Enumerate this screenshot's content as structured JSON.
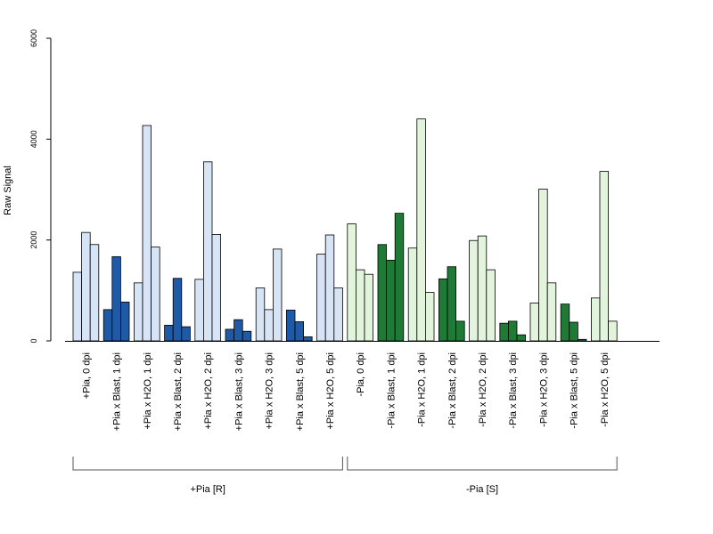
{
  "chart_data": {
    "type": "bar",
    "ylabel": "Raw Signal",
    "ylim": [
      0,
      6000
    ],
    "yticks": [
      0,
      2000,
      4000,
      6000
    ],
    "grid": false,
    "legend": "none",
    "colors": {
      "light_blue": "#d6e4f5",
      "dark_blue": "#1f5aa6",
      "light_green": "#e2f5dc",
      "dark_green": "#1f7a35",
      "stroke": "#000000"
    },
    "categories": [
      "+Pia, 0 dpi",
      "+Pia x Blast, 1 dpi",
      "+Pia x H2O, 1 dpi",
      "+Pia x Blast, 2 dpi",
      "+Pia x H2O, 2 dpi",
      "+Pia x Blast, 3 dpi",
      "+Pia x H2O, 3 dpi",
      "+Pia x Blast, 5 dpi",
      "+Pia x H2O, 5 dpi",
      "-Pia, 0 dpi",
      "-Pia x Blast, 1 dpi",
      "-Pia x H2O, 1 dpi",
      "-Pia x Blast, 2 dpi",
      "-Pia x H2O, 2 dpi",
      "-Pia x Blast, 3 dpi",
      "-Pia x H2O, 3 dpi",
      "-Pia x Blast, 5 dpi",
      "-Pia x H2O, 5 dpi"
    ],
    "bar_colors": [
      "light_blue",
      "dark_blue",
      "light_blue",
      "dark_blue",
      "light_blue",
      "dark_blue",
      "light_blue",
      "dark_blue",
      "light_blue",
      "light_green",
      "dark_green",
      "light_green",
      "dark_green",
      "light_green",
      "dark_green",
      "light_green",
      "dark_green",
      "light_green"
    ],
    "values": [
      [
        1360,
        2150,
        1910
      ],
      [
        620,
        1670,
        770
      ],
      [
        1150,
        4270,
        1860
      ],
      [
        310,
        1240,
        280
      ],
      [
        1220,
        3550,
        2110
      ],
      [
        230,
        420,
        190
      ],
      [
        1050,
        620,
        1820
      ],
      [
        610,
        380,
        80
      ],
      [
        1720,
        2100,
        1050
      ],
      [
        2320,
        1410,
        1320
      ],
      [
        1910,
        1600,
        2530
      ],
      [
        1840,
        4400,
        960
      ],
      [
        1230,
        1470,
        390
      ],
      [
        1990,
        2080,
        1410
      ],
      [
        350,
        390,
        120
      ],
      [
        750,
        3010,
        1150
      ],
      [
        730,
        370,
        30
      ],
      [
        850,
        3360,
        390
      ]
    ],
    "groups": [
      {
        "label": "+Pia [R]",
        "from": 0,
        "to": 8
      },
      {
        "label": "-Pia [S]",
        "from": 9,
        "to": 17
      }
    ]
  }
}
